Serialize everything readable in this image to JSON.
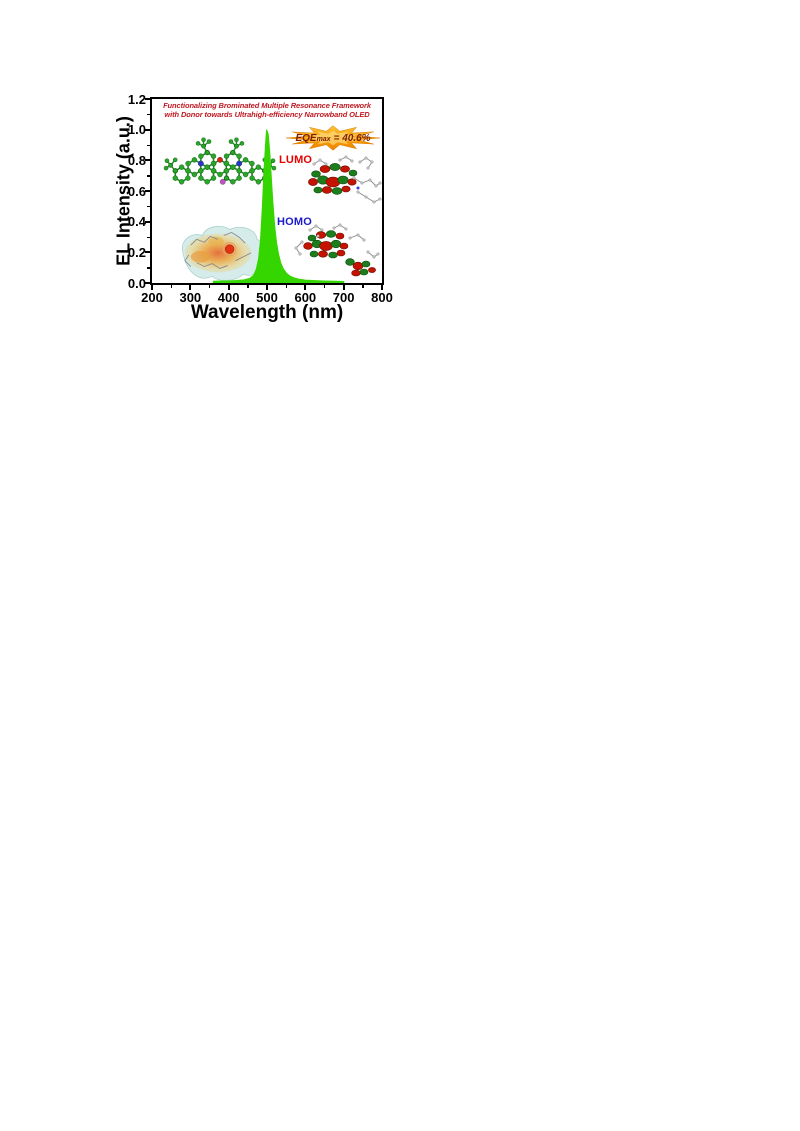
{
  "page": {
    "background_color": "#ffffff"
  },
  "figure": {
    "heading": {
      "line1": "Functionalizing Brominated Multiple Resonance Framework",
      "line2": "with Donor towards Ultrahigh-efficiency Narrowband OLED",
      "color": "#c01822"
    },
    "badge": {
      "prefix": "EQE",
      "subscript": "max",
      "equals_value": "= 40.6%",
      "fill_color": "#f59e00",
      "text_color": "#7d1f00"
    },
    "orbital_labels": {
      "lumo": "LUMO",
      "homo": "HOMO",
      "lumo_color": "#e60000",
      "homo_color": "#1a1acc"
    },
    "images": {
      "molecule": "green-ball-and-stick-mr-framework-molecule",
      "esp": "electrostatic-potential-surface-map",
      "lumo": "lumo-orbital-isosurface",
      "homo": "homo-orbital-isosurface"
    }
  },
  "chart_data": {
    "type": "area",
    "title": "",
    "xlabel": "Wavelength (nm)",
    "ylabel": "EL Intensity (a.u.)",
    "xlim": [
      200,
      800
    ],
    "ylim": [
      0,
      1.2
    ],
    "x_tick_labels": [
      "200",
      "300",
      "400",
      "500",
      "600",
      "700",
      "800"
    ],
    "y_tick_labels": [
      "0.0",
      "0.2",
      "0.4",
      "0.6",
      "0.8",
      "1.0",
      "1.2"
    ],
    "x_minor_ticks": [
      250,
      350,
      450,
      550,
      650,
      750
    ],
    "y_minor_ticks": [
      0.1,
      0.3,
      0.5,
      0.7,
      0.9,
      1.1
    ],
    "grid": false,
    "legend": false,
    "series": [
      {
        "name": "EL spectrum",
        "color": "#35d500",
        "peak_nm": 500,
        "peak_intensity": 1.0,
        "fwhm_nm": 28,
        "points": [
          [
            360,
            0.012
          ],
          [
            380,
            0.013
          ],
          [
            400,
            0.014
          ],
          [
            420,
            0.016
          ],
          [
            440,
            0.02
          ],
          [
            455,
            0.03
          ],
          [
            465,
            0.05
          ],
          [
            472,
            0.09
          ],
          [
            478,
            0.16
          ],
          [
            483,
            0.28
          ],
          [
            488,
            0.5
          ],
          [
            492,
            0.72
          ],
          [
            496,
            0.9
          ],
          [
            499,
            1.0
          ],
          [
            503,
            0.97
          ],
          [
            507,
            0.86
          ],
          [
            511,
            0.7
          ],
          [
            515,
            0.53
          ],
          [
            520,
            0.37
          ],
          [
            525,
            0.26
          ],
          [
            530,
            0.19
          ],
          [
            536,
            0.13
          ],
          [
            542,
            0.095
          ],
          [
            550,
            0.065
          ],
          [
            560,
            0.045
          ],
          [
            572,
            0.032
          ],
          [
            585,
            0.024
          ],
          [
            600,
            0.019
          ],
          [
            620,
            0.016
          ],
          [
            650,
            0.013
          ],
          [
            680,
            0.011
          ],
          [
            700,
            0.01
          ]
        ]
      }
    ]
  }
}
